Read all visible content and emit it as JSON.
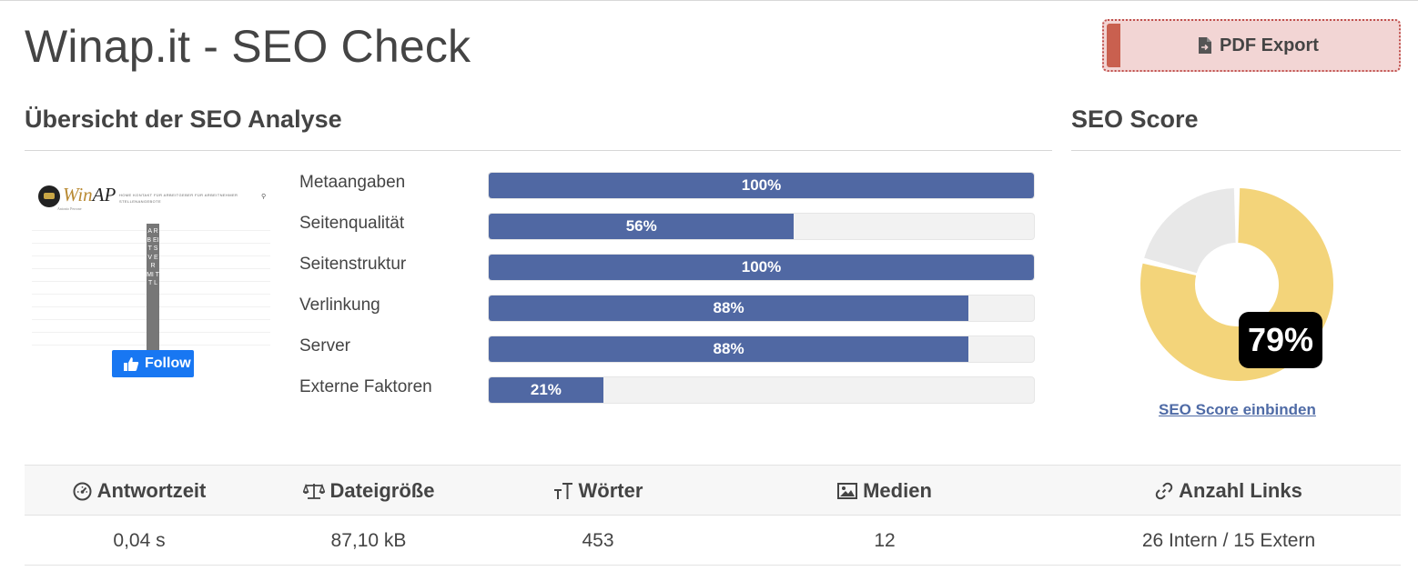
{
  "page": {
    "title": "Winap.it - SEO Check"
  },
  "toolbar": {
    "pdf_export_label": "PDF Export"
  },
  "overview": {
    "title": "Übersicht der SEO Analyse",
    "thumbnail": {
      "brand_prefix": "Win",
      "brand_suffix": "AP",
      "subtitle": "Antonio Perrone",
      "nav_line1": "HOME   KONTAKT   FÜR ARBEITGEBER   FÜR ARBEITNEHMER",
      "nav_line2": "STELLENANGEBOTE",
      "vertical_strip_text": "A R B EI T S V E R MI T T L",
      "follow_label": "Follow"
    },
    "metrics": [
      {
        "label": "Metaangaben",
        "value": "100%",
        "percent": 100
      },
      {
        "label": "Seitenqualität",
        "value": "56%",
        "percent": 56
      },
      {
        "label": "Seitenstruktur",
        "value": "100%",
        "percent": 100
      },
      {
        "label": "Verlinkung",
        "value": "88%",
        "percent": 88
      },
      {
        "label": "Server",
        "value": "88%",
        "percent": 88
      },
      {
        "label": "Externe Faktoren",
        "value": "21%",
        "percent": 21
      }
    ]
  },
  "seo_score": {
    "title": "SEO Score",
    "value": "79%",
    "percent": 79,
    "link_label": "SEO Score einbinden",
    "colors": {
      "score": "#f3d47a",
      "remainder": "#e8e8e8"
    }
  },
  "stats": {
    "columns": [
      {
        "icon": "speedometer-icon",
        "label": "Antwortzeit",
        "value": "0,04 s"
      },
      {
        "icon": "balance-scale-icon",
        "label": "Dateigröße",
        "value": "87,10 kB"
      },
      {
        "icon": "text-height-icon",
        "label": "Wörter",
        "value": "453"
      },
      {
        "icon": "image-icon",
        "label": "Medien",
        "value": "12"
      },
      {
        "icon": "link-icon",
        "label": "Anzahl Links",
        "value": "26 Intern / 15 Extern"
      }
    ]
  },
  "colors": {
    "bar_fill": "#5068a3",
    "pdf_accent": "#c9604f",
    "link": "#4f6ba6"
  }
}
